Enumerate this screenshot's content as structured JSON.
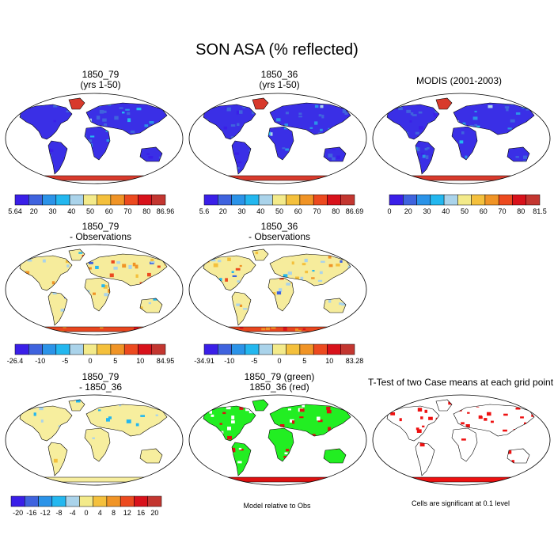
{
  "title": "SON ASA (% reflected)",
  "palettes": {
    "absolute": [
      "#3a1fe8",
      "#3f63de",
      "#2b93e8",
      "#23b7ef",
      "#aad3ea",
      "#f3ea8a",
      "#f4c03c",
      "#f09426",
      "#ec4a1f",
      "#d8121b",
      "#c33630"
    ],
    "difference": [
      "#3a1fe8",
      "#3f63de",
      "#2b93e8",
      "#23b7ef",
      "#aad3ea",
      "#f3ea8a",
      "#f4c03c",
      "#f09426",
      "#ec4a1f",
      "#d8121b",
      "#c33630"
    ],
    "relative": {
      "case1": "#22ee22",
      "case2": "#dd1111"
    },
    "ttest": "#ee1111"
  },
  "panels": [
    {
      "title_line1": "1850_79",
      "title_line2": "(yrs 1-50)",
      "colorbar_labels": [
        "5.64",
        "20",
        "30",
        "40",
        "50",
        "60",
        "70",
        "80",
        "86.96"
      ],
      "fill_style": "absolute"
    },
    {
      "title_line1": "1850_36",
      "title_line2": "(yrs 1-50)",
      "colorbar_labels": [
        "5.6",
        "20",
        "30",
        "40",
        "50",
        "60",
        "70",
        "80",
        "86.69"
      ],
      "fill_style": "absolute"
    },
    {
      "title_line1": "MODIS (2001-2003)",
      "title_line2": "",
      "colorbar_labels": [
        "0",
        "20",
        "30",
        "40",
        "50",
        "60",
        "70",
        "80",
        "81.5"
      ],
      "fill_style": "absolute"
    },
    {
      "title_line1": "1850_79",
      "title_line2": "- Observations",
      "colorbar_labels": [
        "-26.4",
        "-10",
        "-5",
        "0",
        "5",
        "10",
        "84.95"
      ],
      "fill_style": "difference"
    },
    {
      "title_line1": "1850_36",
      "title_line2": "- Observations",
      "colorbar_labels": [
        "-34.91",
        "-10",
        "-5",
        "0",
        "5",
        "10",
        "83.28"
      ],
      "fill_style": "difference"
    },
    {
      "title_line1": "1850_79",
      "title_line2": "- 1850_36",
      "colorbar_labels": [
        "-20",
        "-16",
        "-12",
        "-8",
        "-4",
        "0",
        "4",
        "8",
        "12",
        "16",
        "20"
      ],
      "fill_style": "case-difference"
    },
    {
      "title_line1": "1850_79 (green)",
      "title_line2": "1850_36 (red)",
      "note": "Model relative to Obs",
      "fill_style": "relative"
    },
    {
      "title_line1": "T-Test of two Case means at each grid point",
      "title_line2": "",
      "note": "Cells are significant at 0.1 level",
      "fill_style": "ttest"
    }
  ],
  "chart_data": {
    "type": "heatmap",
    "projection": "Robinson (global)",
    "variable": "SON ASA (% reflected)",
    "maps": [
      {
        "name": "1850_79 (yrs 1-50)",
        "range": [
          5.64,
          86.96
        ],
        "levels": [
          20,
          30,
          40,
          50,
          60,
          70,
          80
        ]
      },
      {
        "name": "1850_36 (yrs 1-50)",
        "range": [
          5.6,
          86.69
        ],
        "levels": [
          20,
          30,
          40,
          50,
          60,
          70,
          80
        ]
      },
      {
        "name": "MODIS (2001-2003)",
        "range": [
          0,
          81.5
        ],
        "levels": [
          20,
          30,
          40,
          50,
          60,
          70,
          80
        ]
      },
      {
        "name": "1850_79 - Observations",
        "range": [
          -26.4,
          84.95
        ],
        "levels": [
          -10,
          -5,
          0,
          5,
          10
        ]
      },
      {
        "name": "1850_36 - Observations",
        "range": [
          -34.91,
          83.28
        ],
        "levels": [
          -10,
          -5,
          0,
          5,
          10
        ]
      },
      {
        "name": "1850_79 - 1850_36",
        "levels": [
          -20,
          -16,
          -12,
          -8,
          -4,
          0,
          4,
          8,
          12,
          16,
          20
        ]
      },
      {
        "name": "Model relative to Obs",
        "categories": [
          "1850_79 (green)",
          "1850_36 (red)"
        ]
      },
      {
        "name": "T-Test of two Case means",
        "significance_level": 0.1
      }
    ]
  }
}
